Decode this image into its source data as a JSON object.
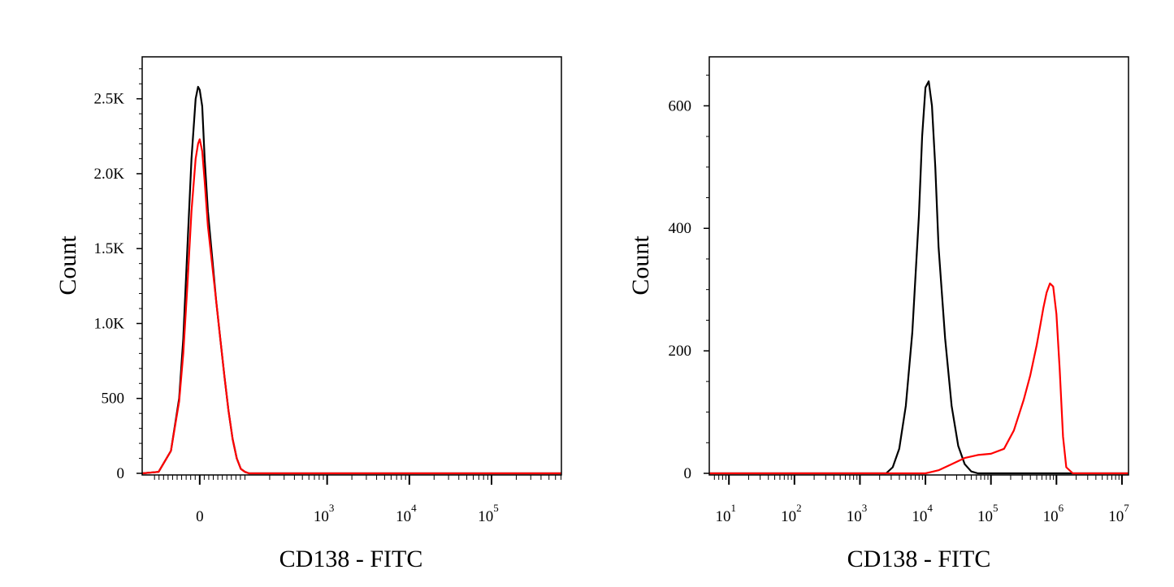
{
  "figure": {
    "background": "#ffffff"
  },
  "chart_data": [
    {
      "type": "line",
      "xlabel": "CD138 - FITC",
      "ylabel": "Count",
      "x_scale": "biexponential",
      "xlim_display": [
        -0.7,
        4.4
      ],
      "ylim": [
        0,
        2780
      ],
      "x_ticks": [
        {
          "label": "0",
          "value": 0
        },
        {
          "label": "10",
          "sup": "3",
          "value": 1000
        },
        {
          "label": "10",
          "sup": "4",
          "value": 10000
        },
        {
          "label": "10",
          "sup": "5",
          "value": 100000
        }
      ],
      "y_ticks": [
        {
          "label": "0",
          "value": 0
        },
        {
          "label": "500",
          "value": 500
        },
        {
          "label": "1.0K",
          "value": 1000
        },
        {
          "label": "1.5K",
          "value": 1500
        },
        {
          "label": "2.0K",
          "value": 2000
        },
        {
          "label": "2.5K",
          "value": 2500
        }
      ],
      "series": [
        {
          "color": "#000000",
          "x_display": [
            -0.7,
            -0.5,
            -0.35,
            -0.25,
            -0.2,
            -0.15,
            -0.1,
            -0.05,
            -0.02,
            0,
            0.03,
            0.06,
            0.1,
            0.15,
            0.2,
            0.25,
            0.3,
            0.35,
            0.4,
            0.45,
            0.5,
            0.55,
            0.6,
            0.7,
            1.0,
            4.4
          ],
          "y": [
            0,
            10,
            150,
            500,
            900,
            1500,
            2100,
            2500,
            2580,
            2560,
            2450,
            2100,
            1750,
            1450,
            1150,
            900,
            650,
            420,
            230,
            100,
            30,
            10,
            0,
            0,
            0,
            0
          ]
        },
        {
          "color": "#ff0000",
          "x_display": [
            -0.7,
            -0.5,
            -0.35,
            -0.25,
            -0.2,
            -0.15,
            -0.1,
            -0.05,
            -0.02,
            0,
            0.03,
            0.06,
            0.1,
            0.15,
            0.2,
            0.25,
            0.3,
            0.35,
            0.4,
            0.45,
            0.5,
            0.55,
            0.6,
            0.7,
            1.0,
            4.4
          ],
          "y": [
            0,
            10,
            150,
            480,
            800,
            1250,
            1750,
            2100,
            2200,
            2230,
            2150,
            1950,
            1650,
            1400,
            1150,
            900,
            650,
            420,
            230,
            100,
            30,
            10,
            0,
            0,
            0,
            0
          ]
        }
      ]
    },
    {
      "type": "line",
      "xlabel": "CD138 - FITC",
      "ylabel": "Count",
      "x_scale": "log",
      "xlim_log10": [
        0.7,
        7.1
      ],
      "ylim": [
        0,
        680
      ],
      "x_ticks": [
        {
          "label": "10",
          "sup": "1",
          "value": 10
        },
        {
          "label": "10",
          "sup": "2",
          "value": 100
        },
        {
          "label": "10",
          "sup": "3",
          "value": 1000
        },
        {
          "label": "10",
          "sup": "4",
          "value": 10000
        },
        {
          "label": "10",
          "sup": "5",
          "value": 100000
        },
        {
          "label": "10",
          "sup": "6",
          "value": 1000000
        },
        {
          "label": "10",
          "sup": "7",
          "value": 10000000
        }
      ],
      "y_ticks": [
        {
          "label": "0",
          "value": 0
        },
        {
          "label": "200",
          "value": 200
        },
        {
          "label": "400",
          "value": 400
        },
        {
          "label": "600",
          "value": 600
        }
      ],
      "series": [
        {
          "color": "#000000",
          "x_log10": [
            0.7,
            3.4,
            3.5,
            3.6,
            3.7,
            3.8,
            3.9,
            3.95,
            4.0,
            4.05,
            4.1,
            4.15,
            4.2,
            4.3,
            4.4,
            4.5,
            4.6,
            4.7,
            4.8,
            7.1
          ],
          "y": [
            0,
            0,
            10,
            40,
            110,
            230,
            420,
            550,
            630,
            640,
            600,
            500,
            370,
            220,
            110,
            45,
            15,
            3,
            0,
            0
          ]
        },
        {
          "color": "#ff0000",
          "x_log10": [
            0.7,
            4.0,
            4.2,
            4.4,
            4.6,
            4.8,
            5.0,
            5.2,
            5.35,
            5.5,
            5.6,
            5.7,
            5.75,
            5.8,
            5.85,
            5.9,
            5.95,
            6.0,
            6.05,
            6.1,
            6.15,
            6.25,
            7.1
          ],
          "y": [
            0,
            0,
            5,
            15,
            25,
            30,
            32,
            40,
            70,
            120,
            160,
            210,
            240,
            270,
            295,
            310,
            305,
            260,
            170,
            60,
            10,
            0,
            0
          ]
        }
      ]
    }
  ]
}
